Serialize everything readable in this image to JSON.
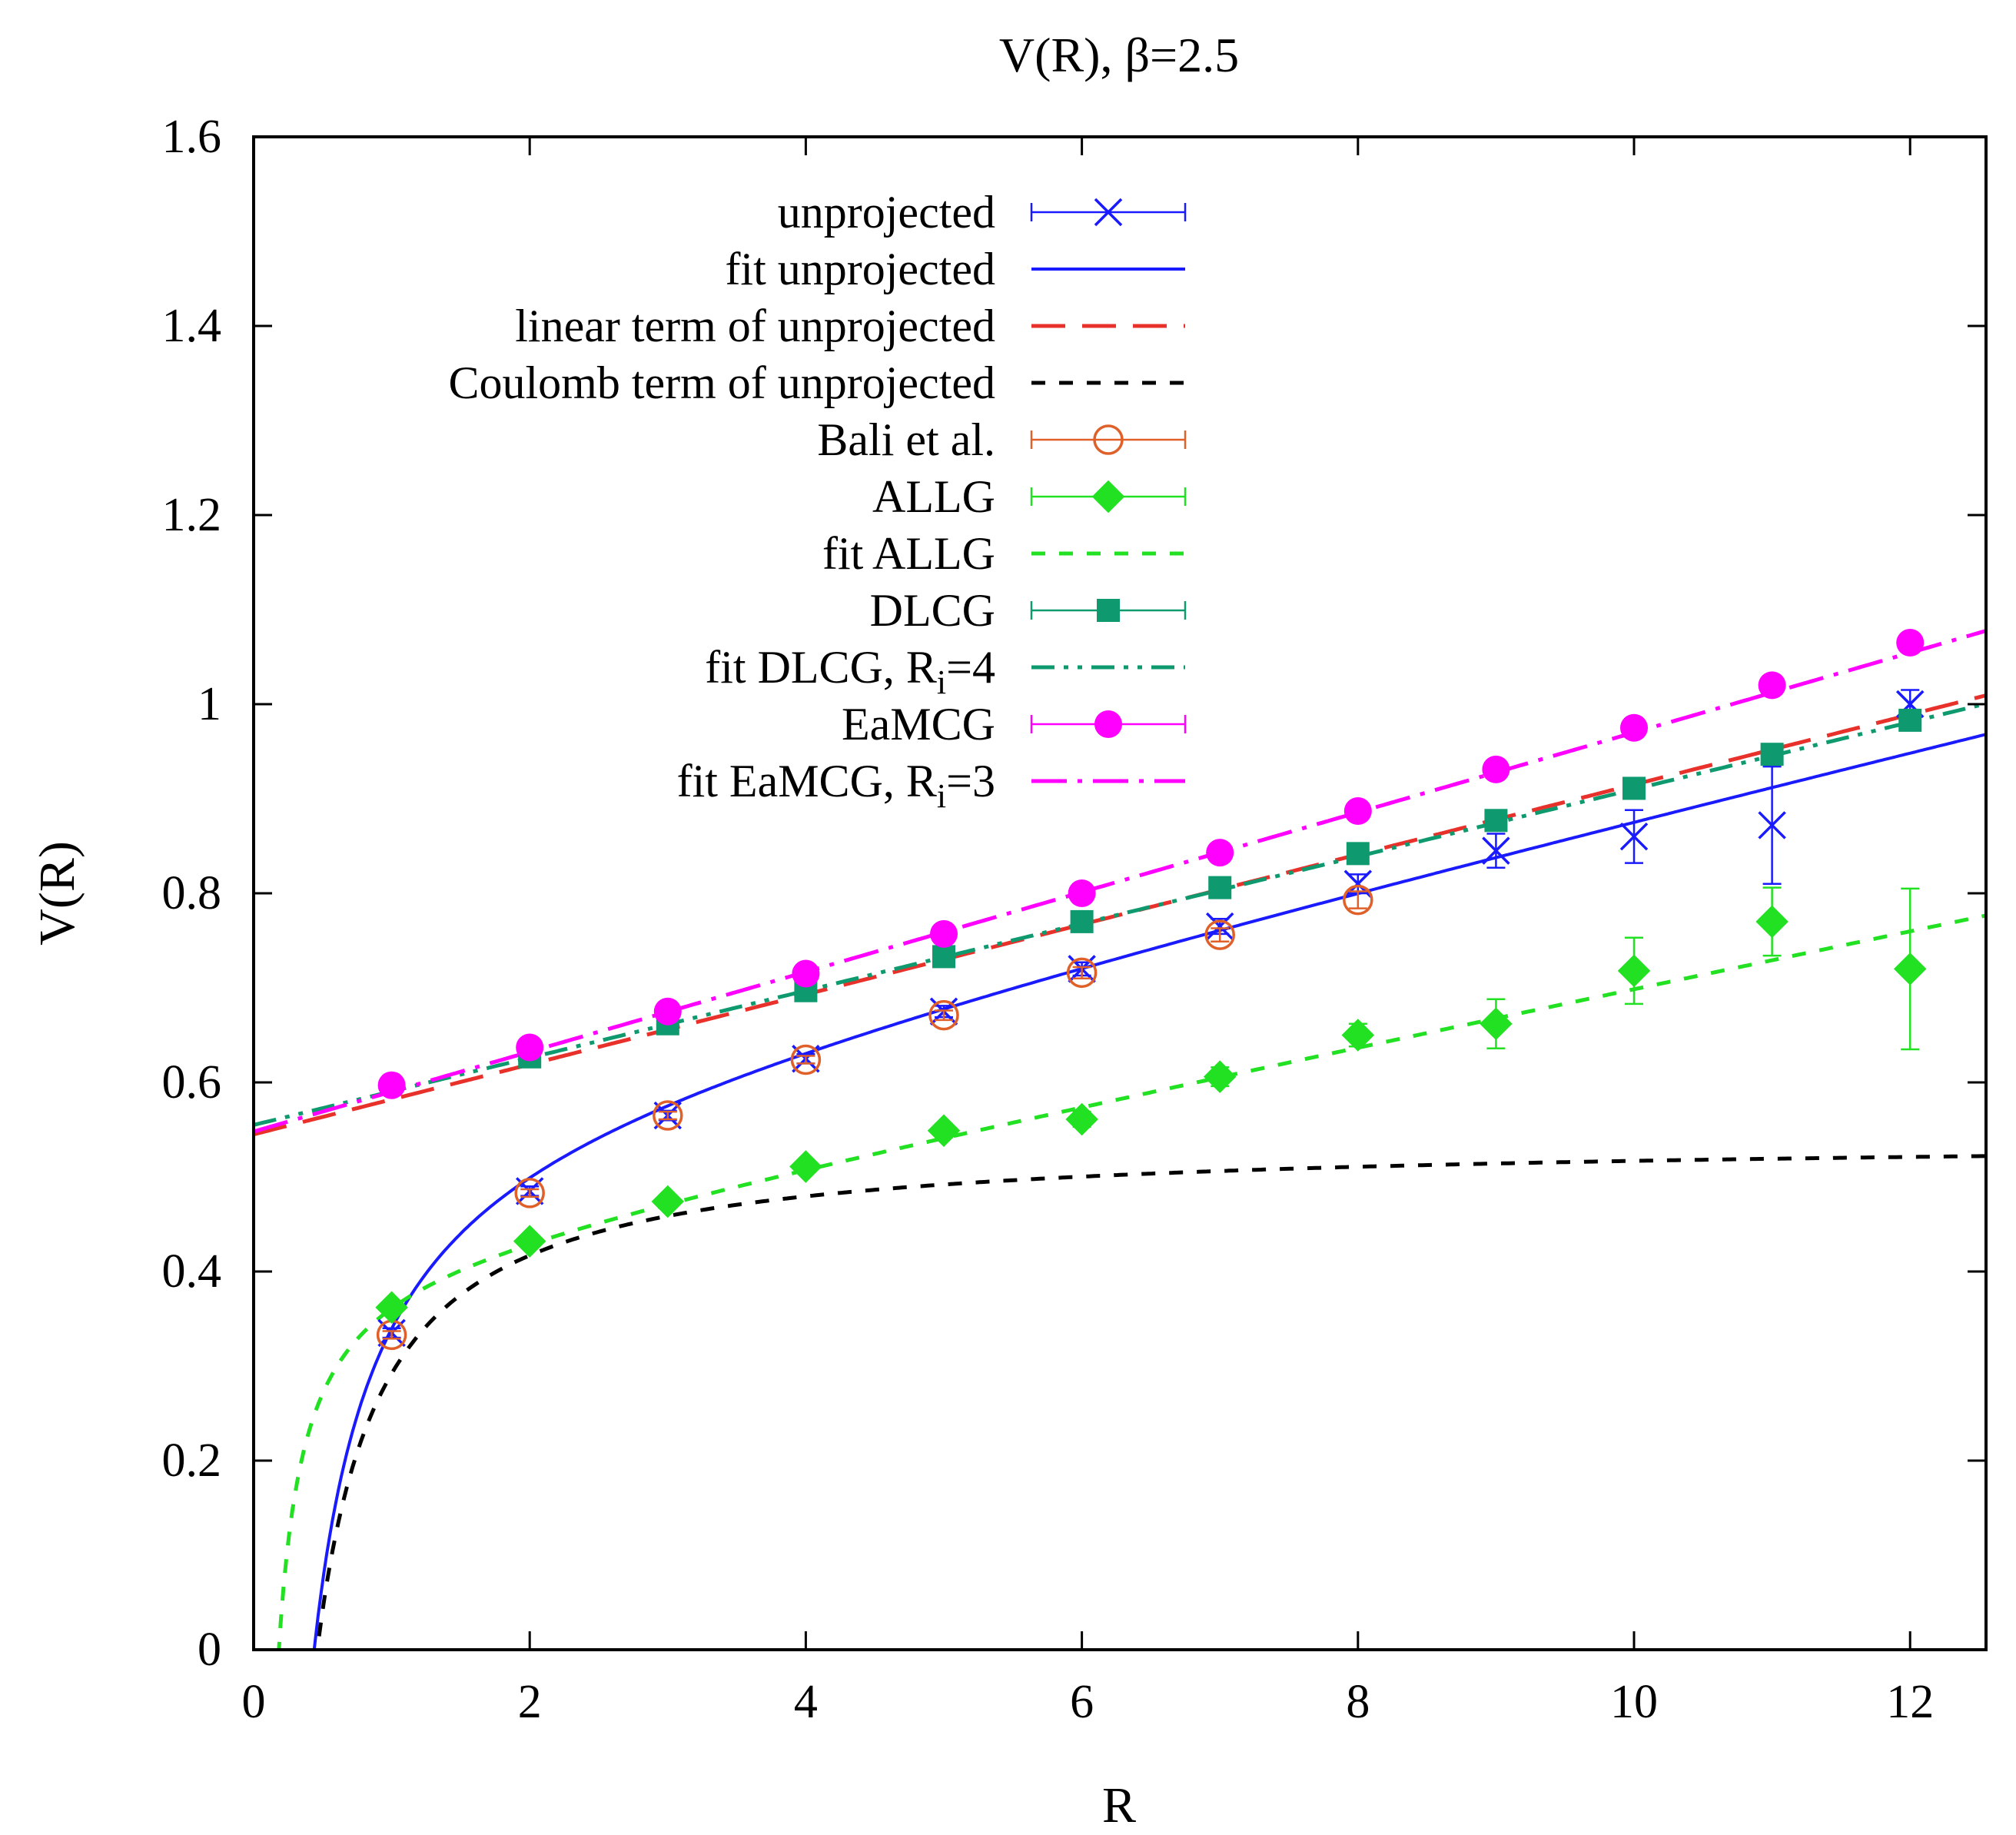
{
  "chart_data": {
    "type": "line",
    "title": "V(R), β=2.5",
    "xlabel": "R",
    "ylabel": "V(R)",
    "xlim": [
      0,
      12.55
    ],
    "ylim": [
      0,
      1.6
    ],
    "xticks": [
      "0",
      "2",
      "4",
      "6",
      "8",
      "10",
      "12"
    ],
    "yticks": [
      "0",
      "0.2",
      "0.4",
      "0.6",
      "0.8",
      "1",
      "1.2",
      "1.4",
      "1.6"
    ],
    "grid": false,
    "legend_position": "top-right",
    "series": [
      {
        "name": "unprojected",
        "kind": "points",
        "marker": "cross",
        "color": "#1a1aff",
        "x": [
          1,
          2,
          3,
          4,
          5,
          6,
          7,
          8,
          9,
          10,
          11,
          12
        ],
        "y": [
          0.335,
          0.485,
          0.565,
          0.625,
          0.675,
          0.72,
          0.765,
          0.81,
          0.845,
          0.86,
          0.872,
          1.0
        ],
        "err": [
          0.005,
          0.005,
          0.005,
          0.005,
          0.006,
          0.007,
          0.008,
          0.01,
          0.018,
          0.028,
          0.062,
          0.015
        ]
      },
      {
        "name": "fit unprojected",
        "kind": "curve",
        "style": "solid",
        "color": "#1a1aff",
        "params": {
          "c": 0.555,
          "sigma": 0.0345,
          "alpha": 0.25
        }
      },
      {
        "name": "linear term of unprojected",
        "kind": "curve",
        "style": "long-dash",
        "color": "#e8312b",
        "params": {
          "c": 0.545,
          "sigma": 0.037
        }
      },
      {
        "name": "Coulomb term of unprojected",
        "kind": "curve",
        "style": "short-dash",
        "color": "#000000",
        "params": {
          "c": 0.542,
          "alpha": 0.25
        }
      },
      {
        "name": "Bali et al.",
        "kind": "points",
        "marker": "open-circle",
        "color": "#e0602a",
        "x": [
          1,
          2,
          3,
          4,
          5,
          6,
          7,
          8
        ],
        "y": [
          0.333,
          0.483,
          0.565,
          0.624,
          0.671,
          0.716,
          0.756,
          0.793
        ],
        "err": [
          0.004,
          0.004,
          0.004,
          0.004,
          0.005,
          0.006,
          0.007,
          0.009
        ]
      },
      {
        "name": "ALLG",
        "kind": "points",
        "marker": "filled-diamond",
        "color": "#22e022",
        "x": [
          1,
          2,
          3,
          4,
          5,
          6,
          7,
          8,
          9,
          10,
          11,
          12
        ],
        "y": [
          0.362,
          0.432,
          0.474,
          0.511,
          0.549,
          0.561,
          0.606,
          0.65,
          0.662,
          0.718,
          0.77,
          0.72
        ],
        "err": [
          0.004,
          0.004,
          0.005,
          0.006,
          0.007,
          0.008,
          0.01,
          0.012,
          0.026,
          0.035,
          0.036,
          0.085
        ]
      },
      {
        "name": "fit ALLG",
        "kind": "curve",
        "style": "short-dash",
        "color": "#22e022",
        "params": {
          "c": 0.406,
          "sigma": 0.03,
          "alpha": 0.075
        }
      },
      {
        "name": "DLCG",
        "kind": "points",
        "marker": "filled-square",
        "color": "#0e9a6e",
        "x": [
          2,
          3,
          4,
          5,
          6,
          7,
          8,
          9,
          10,
          11,
          12
        ],
        "y": [
          0.627,
          0.662,
          0.697,
          0.733,
          0.77,
          0.806,
          0.842,
          0.877,
          0.911,
          0.947,
          0.983
        ],
        "err": [
          0.003,
          0.003,
          0.003,
          0.003,
          0.004,
          0.004,
          0.005,
          0.006,
          0.007,
          0.008,
          0.01
        ]
      },
      {
        "name": "fit DLCG, R",
        "name_sub": "i",
        "name_tail": "=4",
        "kind": "curve",
        "style": "dash-dot-dot",
        "color": "#0e9a6e",
        "params": {
          "c": 0.555,
          "sigma": 0.0355
        }
      },
      {
        "name": "EaMCG",
        "kind": "points",
        "marker": "filled-circle",
        "color": "#ff00ff",
        "x": [
          1,
          2,
          3,
          4,
          5,
          6,
          7,
          8,
          9,
          10,
          11,
          12
        ],
        "y": [
          0.597,
          0.637,
          0.675,
          0.715,
          0.757,
          0.8,
          0.843,
          0.887,
          0.931,
          0.975,
          1.02,
          1.065
        ],
        "err": [
          0.003,
          0.003,
          0.003,
          0.003,
          0.003,
          0.004,
          0.004,
          0.005,
          0.005,
          0.006,
          0.006,
          0.007
        ]
      },
      {
        "name": "fit EaMCG, R",
        "name_sub": "i",
        "name_tail": "=3",
        "kind": "curve",
        "style": "dash-dot",
        "color": "#ff00ff",
        "params": {
          "c": 0.548,
          "sigma": 0.0422
        }
      }
    ]
  }
}
